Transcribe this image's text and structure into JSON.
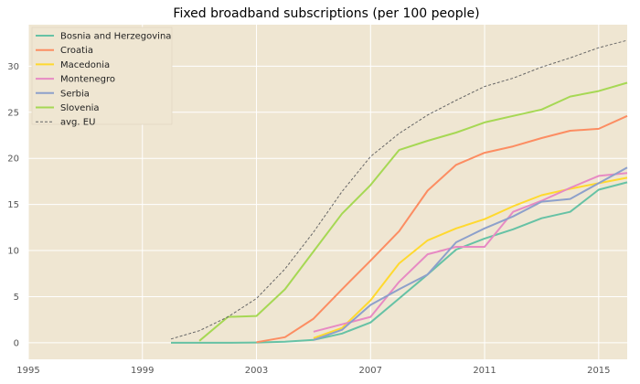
{
  "chart_data": {
    "type": "line",
    "title": "Fixed broadband subscriptions (per 100 people)",
    "xlabel": "",
    "ylabel": "",
    "xlim": [
      1995,
      2016
    ],
    "ylim": [
      -1.8,
      34.5
    ],
    "x_ticks": [
      1995,
      1999,
      2003,
      2007,
      2011,
      2015
    ],
    "y_ticks": [
      0,
      5,
      10,
      15,
      20,
      25,
      30
    ],
    "grid": true,
    "legend_position": "top-left",
    "background_color": "#efe6d2",
    "grid_color": "#ffffff",
    "series": [
      {
        "name": "Bosnia and Herzegovina",
        "color": "#66c2a5",
        "dashed": false,
        "points": [
          [
            2000,
            0.0
          ],
          [
            2001,
            0.0
          ],
          [
            2002,
            0.0
          ],
          [
            2003,
            0.02
          ],
          [
            2004,
            0.1
          ],
          [
            2005,
            0.3
          ],
          [
            2006,
            1.0
          ],
          [
            2007,
            2.2
          ],
          [
            2008,
            4.8
          ],
          [
            2009,
            7.4
          ],
          [
            2010,
            10.1
          ],
          [
            2011,
            11.3
          ],
          [
            2012,
            12.3
          ],
          [
            2013,
            13.5
          ],
          [
            2014,
            14.2
          ],
          [
            2015,
            16.6
          ],
          [
            2016,
            17.4
          ]
        ]
      },
      {
        "name": "Croatia",
        "color": "#fc8d62",
        "dashed": false,
        "points": [
          [
            2003,
            0.05
          ],
          [
            2004,
            0.6
          ],
          [
            2005,
            2.6
          ],
          [
            2006,
            5.8
          ],
          [
            2007,
            8.9
          ],
          [
            2008,
            12.1
          ],
          [
            2009,
            16.5
          ],
          [
            2010,
            19.3
          ],
          [
            2011,
            20.6
          ],
          [
            2012,
            21.3
          ],
          [
            2013,
            22.2
          ],
          [
            2014,
            23.0
          ],
          [
            2015,
            23.2
          ],
          [
            2016,
            24.6
          ]
        ]
      },
      {
        "name": "Macedonia",
        "color": "#ffd92f",
        "dashed": false,
        "points": [
          [
            2005,
            0.5
          ],
          [
            2006,
            1.6
          ],
          [
            2007,
            4.6
          ],
          [
            2008,
            8.6
          ],
          [
            2009,
            11.1
          ],
          [
            2010,
            12.4
          ],
          [
            2011,
            13.4
          ],
          [
            2012,
            14.8
          ],
          [
            2013,
            16.0
          ],
          [
            2014,
            16.7
          ],
          [
            2015,
            17.3
          ],
          [
            2016,
            17.9
          ]
        ]
      },
      {
        "name": "Montenegro",
        "color": "#e78ac3",
        "dashed": false,
        "points": [
          [
            2005,
            1.2
          ],
          [
            2006,
            2.0
          ],
          [
            2007,
            2.8
          ],
          [
            2008,
            6.6
          ],
          [
            2009,
            9.6
          ],
          [
            2010,
            10.4
          ],
          [
            2011,
            10.4
          ],
          [
            2012,
            14.2
          ],
          [
            2013,
            15.4
          ],
          [
            2014,
            16.8
          ],
          [
            2015,
            18.1
          ],
          [
            2016,
            18.4
          ]
        ]
      },
      {
        "name": "Serbia",
        "color": "#8da0cb",
        "dashed": false,
        "points": [
          [
            2005,
            0.3
          ],
          [
            2006,
            1.4
          ],
          [
            2007,
            4.1
          ],
          [
            2008,
            5.8
          ],
          [
            2009,
            7.4
          ],
          [
            2010,
            10.9
          ],
          [
            2011,
            12.4
          ],
          [
            2012,
            13.7
          ],
          [
            2013,
            15.3
          ],
          [
            2014,
            15.6
          ],
          [
            2015,
            17.3
          ],
          [
            2016,
            19.0
          ]
        ]
      },
      {
        "name": "Slovenia",
        "color": "#a6d854",
        "dashed": false,
        "points": [
          [
            2001,
            0.2
          ],
          [
            2002,
            2.8
          ],
          [
            2003,
            2.9
          ],
          [
            2004,
            5.8
          ],
          [
            2005,
            9.9
          ],
          [
            2006,
            14.0
          ],
          [
            2007,
            17.1
          ],
          [
            2008,
            20.9
          ],
          [
            2009,
            21.9
          ],
          [
            2010,
            22.8
          ],
          [
            2011,
            23.9
          ],
          [
            2012,
            24.6
          ],
          [
            2013,
            25.3
          ],
          [
            2014,
            26.7
          ],
          [
            2015,
            27.3
          ],
          [
            2016,
            28.2
          ]
        ]
      },
      {
        "name": "avg. EU",
        "color": "#666666",
        "dashed": true,
        "points": [
          [
            2000,
            0.4
          ],
          [
            2001,
            1.3
          ],
          [
            2002,
            2.8
          ],
          [
            2003,
            4.8
          ],
          [
            2004,
            8.0
          ],
          [
            2005,
            12.0
          ],
          [
            2006,
            16.4
          ],
          [
            2007,
            20.2
          ],
          [
            2008,
            22.7
          ],
          [
            2009,
            24.7
          ],
          [
            2010,
            26.3
          ],
          [
            2011,
            27.8
          ],
          [
            2012,
            28.7
          ],
          [
            2013,
            29.9
          ],
          [
            2014,
            30.9
          ],
          [
            2015,
            32.0
          ],
          [
            2016,
            32.8
          ]
        ]
      }
    ]
  }
}
